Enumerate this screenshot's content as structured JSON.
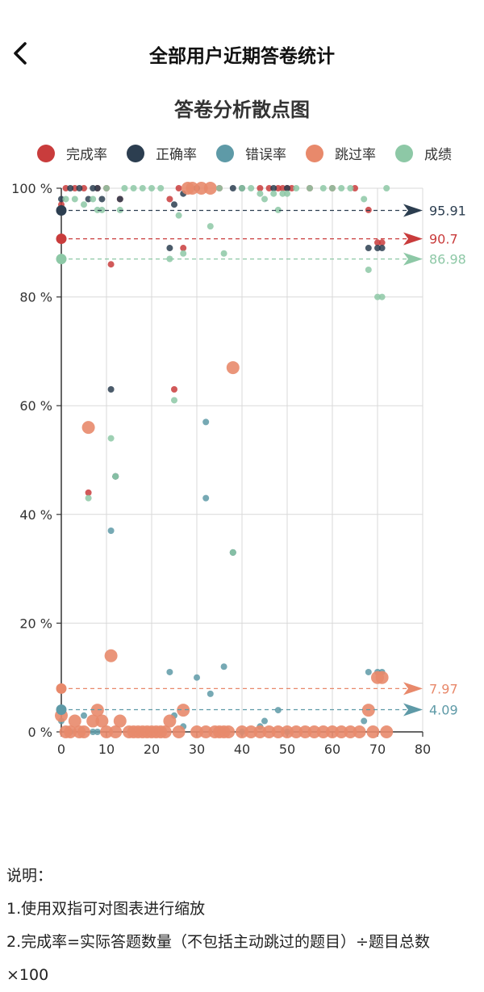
{
  "header": {
    "title": "全部用户近期答卷统计"
  },
  "chart_data": {
    "type": "scatter",
    "title": "答卷分析散点图",
    "xlim": [
      0,
      80
    ],
    "ylim": [
      0,
      100
    ],
    "x_ticks": [
      "0",
      "10",
      "20",
      "30",
      "40",
      "50",
      "60",
      "70",
      "80"
    ],
    "y_ticks": [
      "0 %",
      "20 %",
      "40 %",
      "60 %",
      "80 %",
      "100 %"
    ],
    "series": [
      {
        "name": "完成率",
        "color": "#c93c3c",
        "points": [
          [
            0,
            97
          ],
          [
            1,
            100
          ],
          [
            3,
            100
          ],
          [
            5,
            100
          ],
          [
            8,
            100
          ],
          [
            10,
            100
          ],
          [
            11,
            86
          ],
          [
            13,
            98
          ],
          [
            24,
            98
          ],
          [
            25,
            63
          ],
          [
            26,
            100
          ],
          [
            27,
            89
          ],
          [
            35,
            100
          ],
          [
            44,
            100
          ],
          [
            46,
            100
          ],
          [
            48,
            100
          ],
          [
            49,
            100
          ],
          [
            50,
            100
          ],
          [
            51,
            100
          ],
          [
            55,
            100
          ],
          [
            60,
            100
          ],
          [
            65,
            100
          ],
          [
            68,
            96
          ],
          [
            70,
            90
          ],
          [
            71,
            90
          ],
          [
            6,
            44
          ],
          [
            12,
            47
          ]
        ],
        "mean": 90.7
      },
      {
        "name": "正确率",
        "color": "#2c3e50",
        "points": [
          [
            0,
            98
          ],
          [
            2,
            100
          ],
          [
            4,
            100
          ],
          [
            6,
            98
          ],
          [
            7,
            100
          ],
          [
            8,
            100
          ],
          [
            9,
            98
          ],
          [
            11,
            63
          ],
          [
            13,
            98
          ],
          [
            24,
            89
          ],
          [
            25,
            97
          ],
          [
            27,
            99
          ],
          [
            30,
            100
          ],
          [
            38,
            100
          ],
          [
            40,
            100
          ],
          [
            47,
            100
          ],
          [
            50,
            100
          ],
          [
            68,
            89
          ],
          [
            70,
            89
          ],
          [
            71,
            89
          ],
          [
            12,
            47
          ],
          [
            38,
            33
          ]
        ],
        "mean": 95.91
      },
      {
        "name": "错误率",
        "color": "#5e9aa7",
        "points": [
          [
            0,
            2
          ],
          [
            2,
            0
          ],
          [
            5,
            3
          ],
          [
            7,
            0
          ],
          [
            8,
            0
          ],
          [
            11,
            37
          ],
          [
            24,
            11
          ],
          [
            25,
            3
          ],
          [
            27,
            1
          ],
          [
            30,
            10
          ],
          [
            32,
            57
          ],
          [
            32,
            43
          ],
          [
            33,
            7
          ],
          [
            36,
            12
          ],
          [
            45,
            2
          ],
          [
            48,
            4
          ],
          [
            50,
            0
          ],
          [
            67,
            2
          ],
          [
            68,
            11
          ],
          [
            70,
            11
          ],
          [
            71,
            11
          ],
          [
            12,
            47
          ],
          [
            38,
            33
          ],
          [
            44,
            1
          ],
          [
            40,
            0
          ]
        ],
        "mean": 4.09
      },
      {
        "name": "跳过率",
        "color": "#e8896b",
        "points": [
          [
            0,
            3
          ],
          [
            1,
            0
          ],
          [
            2,
            0
          ],
          [
            3,
            2
          ],
          [
            4,
            0
          ],
          [
            5,
            0
          ],
          [
            6,
            56
          ],
          [
            7,
            2
          ],
          [
            8,
            4
          ],
          [
            9,
            2
          ],
          [
            10,
            0
          ],
          [
            11,
            14
          ],
          [
            12,
            0
          ],
          [
            13,
            2
          ],
          [
            15,
            0
          ],
          [
            17,
            0
          ],
          [
            19,
            0
          ],
          [
            21,
            0
          ],
          [
            23,
            0
          ],
          [
            24,
            2
          ],
          [
            26,
            0
          ],
          [
            27,
            4
          ],
          [
            28,
            100
          ],
          [
            29,
            100
          ],
          [
            31,
            100
          ],
          [
            33,
            100
          ],
          [
            35,
            0
          ],
          [
            37,
            0
          ],
          [
            38,
            67
          ],
          [
            40,
            0
          ],
          [
            42,
            0
          ],
          [
            44,
            0
          ],
          [
            46,
            0
          ],
          [
            48,
            0
          ],
          [
            50,
            0
          ],
          [
            52,
            0
          ],
          [
            54,
            0
          ],
          [
            56,
            0
          ],
          [
            58,
            0
          ],
          [
            60,
            0
          ],
          [
            62,
            0
          ],
          [
            64,
            0
          ],
          [
            66,
            0
          ],
          [
            68,
            4
          ],
          [
            69,
            0
          ],
          [
            70,
            10
          ],
          [
            71,
            10
          ],
          [
            72,
            0
          ],
          [
            30,
            0
          ],
          [
            32,
            0
          ],
          [
            34,
            0
          ],
          [
            36,
            0
          ],
          [
            16,
            0
          ],
          [
            18,
            0
          ],
          [
            20,
            0
          ],
          [
            22,
            0
          ]
        ],
        "mean": 7.97
      },
      {
        "name": "成绩",
        "color": "#8dc8a6",
        "points": [
          [
            0,
            96
          ],
          [
            1,
            98
          ],
          [
            3,
            98
          ],
          [
            5,
            97
          ],
          [
            6,
            43
          ],
          [
            7,
            98
          ],
          [
            8,
            96
          ],
          [
            9,
            96
          ],
          [
            10,
            100
          ],
          [
            11,
            54
          ],
          [
            12,
            47
          ],
          [
            13,
            96
          ],
          [
            14,
            100
          ],
          [
            16,
            100
          ],
          [
            18,
            100
          ],
          [
            20,
            100
          ],
          [
            22,
            100
          ],
          [
            24,
            87
          ],
          [
            25,
            61
          ],
          [
            26,
            95
          ],
          [
            27,
            88
          ],
          [
            33,
            93
          ],
          [
            36,
            88
          ],
          [
            38,
            33
          ],
          [
            44,
            99
          ],
          [
            45,
            98
          ],
          [
            47,
            99
          ],
          [
            48,
            96
          ],
          [
            49,
            99
          ],
          [
            50,
            99
          ],
          [
            52,
            100
          ],
          [
            55,
            100
          ],
          [
            58,
            100
          ],
          [
            60,
            100
          ],
          [
            62,
            100
          ],
          [
            64,
            100
          ],
          [
            67,
            98
          ],
          [
            68,
            85
          ],
          [
            70,
            80
          ],
          [
            71,
            80
          ],
          [
            72,
            100
          ],
          [
            35,
            100
          ],
          [
            40,
            100
          ],
          [
            42,
            100
          ]
        ],
        "mean": 86.98
      }
    ],
    "mean_labels": [
      "95.91",
      "90.7",
      "86.98",
      "7.97",
      "4.09"
    ]
  },
  "notes": {
    "heading": "说明：",
    "item1": "1.使用双指可对图表进行缩放",
    "item2": "2.完成率=实际答题数量（不包括主动跳过的题目）÷题目总数",
    "item3": "×100"
  }
}
